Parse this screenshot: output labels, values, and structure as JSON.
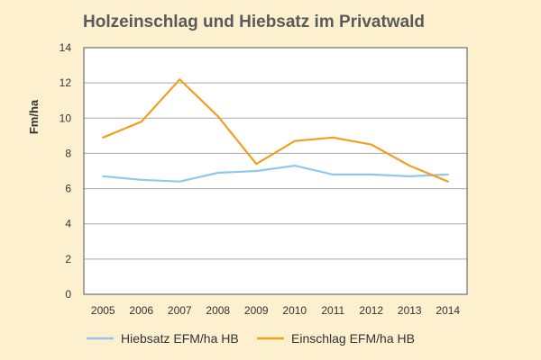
{
  "chart_data": {
    "type": "line",
    "title": "Holzeinschlag und Hiebsatz im Privatwald",
    "xlabel": "",
    "ylabel": "Fm/ha",
    "ylim": [
      0,
      14
    ],
    "yticks": [
      0,
      2,
      4,
      6,
      8,
      10,
      12,
      14
    ],
    "grid": true,
    "legend_position": "bottom",
    "x": [
      "2005",
      "2006",
      "2007",
      "2008",
      "2009",
      "2010",
      "2011",
      "2012",
      "2013",
      "2014"
    ],
    "series": [
      {
        "name": "Hiebsatz EFM/ha HB",
        "color": "#8ecae8",
        "values": [
          6.7,
          6.5,
          6.4,
          6.9,
          7.0,
          7.3,
          6.8,
          6.8,
          6.7,
          6.8
        ]
      },
      {
        "name": "Einschlag EFM/ha HB",
        "color": "#f0a021",
        "values": [
          8.9,
          9.8,
          12.2,
          10.1,
          7.4,
          8.7,
          8.9,
          8.5,
          7.3,
          6.4
        ]
      }
    ],
    "colors": {
      "background": "#fdf0cf",
      "plot_background": "#ffffff",
      "grid": "#a8a8a8",
      "frame": "#555555"
    }
  }
}
